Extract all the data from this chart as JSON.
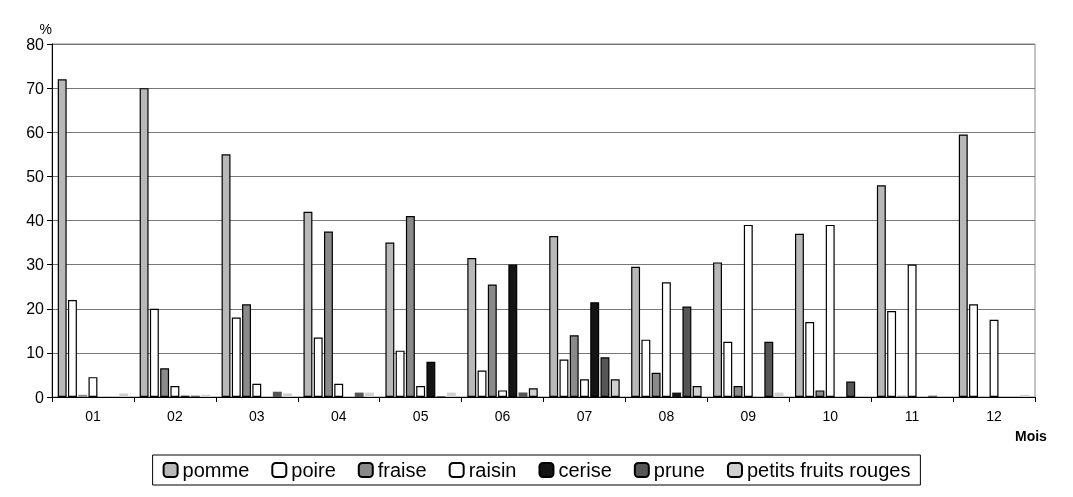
{
  "chart_data": {
    "type": "bar",
    "ylabel": "%",
    "xlabel": "Mois",
    "categories": [
      "01",
      "02",
      "03",
      "04",
      "05",
      "06",
      "07",
      "08",
      "09",
      "10",
      "11",
      "12"
    ],
    "series": [
      {
        "name": "pomme",
        "color": "#b8b8b8",
        "values": [
          72,
          70,
          55,
          42,
          35,
          31.5,
          36.5,
          29.5,
          30.5,
          37,
          48,
          59.5
        ]
      },
      {
        "name": "poire",
        "color": "#ffffff",
        "values": [
          22,
          20,
          18,
          13.5,
          10.5,
          6,
          8.5,
          13,
          12.5,
          17,
          19.5,
          21
        ]
      },
      {
        "name": "fraise",
        "color": "#8a8a8a",
        "values": [
          0.5,
          6.5,
          21,
          37.5,
          41,
          25.5,
          14,
          5.5,
          2.5,
          1.5,
          0.3,
          null
        ]
      },
      {
        "name": "raisin",
        "color": "#fefefe",
        "values": [
          4.5,
          2.5,
          3,
          3,
          2.5,
          1.5,
          4,
          26,
          39,
          39,
          30,
          17.5
        ]
      },
      {
        "name": "cerise",
        "color": "#141414",
        "values": [
          null,
          0.3,
          null,
          null,
          8,
          30,
          21.5,
          1,
          null,
          null,
          null,
          null
        ]
      },
      {
        "name": "prune",
        "color": "#555555",
        "values": [
          null,
          0.3,
          1.2,
          1,
          0.2,
          1,
          9,
          20.5,
          12.5,
          3.5,
          0.3,
          null
        ]
      },
      {
        "name": "petits fruits rouges",
        "color": "#d0d0d0",
        "values": [
          0.8,
          0.5,
          0.8,
          1,
          1,
          2,
          4,
          2.5,
          1,
          null,
          null,
          0.5
        ]
      }
    ],
    "ylim": [
      0,
      80
    ],
    "yticks": [
      0,
      10,
      20,
      30,
      40,
      50,
      60,
      70,
      80
    ],
    "grid": "y",
    "legend": "bottom"
  }
}
